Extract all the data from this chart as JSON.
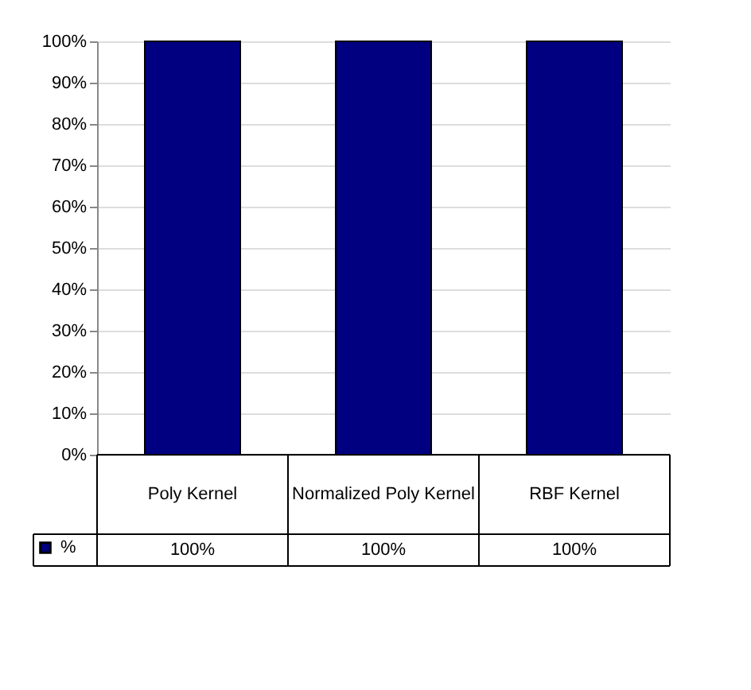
{
  "chart_data": {
    "type": "bar",
    "categories": [
      "Poly Kernel",
      "Normalized Poly Kernel",
      "RBF Kernel"
    ],
    "series": [
      {
        "name": "%",
        "color": "#000080",
        "values": [
          100,
          100,
          100
        ]
      }
    ],
    "value_labels": [
      "100%",
      "100%",
      "100%"
    ],
    "ylim": [
      0,
      100
    ],
    "yticks": [
      {
        "value": 0,
        "label": "0%"
      },
      {
        "value": 10,
        "label": "10%"
      },
      {
        "value": 20,
        "label": "20%"
      },
      {
        "value": 30,
        "label": "30%"
      },
      {
        "value": 40,
        "label": "40%"
      },
      {
        "value": 50,
        "label": "50%"
      },
      {
        "value": 60,
        "label": "60%"
      },
      {
        "value": 70,
        "label": "70%"
      },
      {
        "value": 80,
        "label": "80%"
      },
      {
        "value": 90,
        "label": "90%"
      },
      {
        "value": 100,
        "label": "100%"
      }
    ],
    "grid": "y",
    "legend": "bottom"
  }
}
